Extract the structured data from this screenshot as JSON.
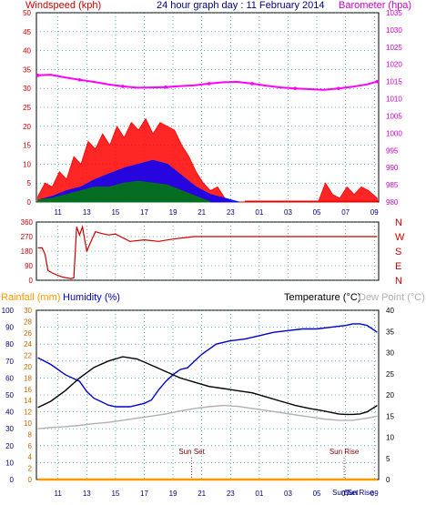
{
  "colors": {
    "windspeed": "#ff0000",
    "gust_area": "#ff0000",
    "avg_area": "#0000ff",
    "low_area": "#008000",
    "barometer": "#ff00ff",
    "direction": "#cc0000",
    "rainfall": "#ff9900",
    "humidity": "#0000cc",
    "temperature": "#000000",
    "dewpoint": "#b0b0b0",
    "grid": "#008080",
    "axis_left_wind": "#cc0000",
    "axis_right_baro": "#cc00cc",
    "axis_time": "#000080",
    "axis_hum": "#000080",
    "axis_rain": "#cc6600",
    "axis_temp": "#000000",
    "compass": "#cc0000"
  },
  "chart_data": [
    {
      "type": "line",
      "title": "24 hour graph day : 11 February 2014",
      "ylabel": "Windspeed (kph)",
      "y2label": "Barometer (hpa)",
      "ylim": [
        0,
        50
      ],
      "yticks": [
        "0",
        "5",
        "10",
        "15",
        "20",
        "25",
        "30",
        "35",
        "40",
        "45",
        "50"
      ],
      "y2lim": [
        980,
        1035
      ],
      "y2ticks": [
        "980",
        "985",
        "990",
        "995",
        "1000",
        "1005",
        "1010",
        "1015",
        "1020",
        "1025",
        "1030",
        "1035"
      ],
      "xlim": [
        9.5,
        33.3
      ],
      "xticks": [
        "11",
        "13",
        "15",
        "17",
        "19",
        "21",
        "23",
        "01",
        "03",
        "05",
        "07",
        "09"
      ],
      "grid": true,
      "series": [
        {
          "name": "Barometer",
          "axis": "right",
          "x": [
            9.6,
            10.5,
            11.5,
            12.5,
            13.5,
            14.5,
            15.5,
            16.5,
            17.5,
            18.5,
            19.5,
            20.5,
            21.5,
            22.5,
            23.5,
            24.5,
            25.5,
            26.5,
            27.5,
            28.5,
            29.5,
            30.5,
            31.5,
            32.5,
            33.2
          ],
          "values": [
            1016.8,
            1017.0,
            1016.2,
            1015.5,
            1014.9,
            1014.2,
            1013.6,
            1013.2,
            1013.3,
            1013.4,
            1013.7,
            1013.9,
            1014.4,
            1014.8,
            1014.9,
            1014.4,
            1013.8,
            1013.3,
            1013.0,
            1012.8,
            1012.6,
            1013.0,
            1013.5,
            1014.2,
            1015.0
          ]
        },
        {
          "name": "Gust",
          "type": "area",
          "x": [
            9.6,
            10.1,
            10.6,
            11.1,
            11.6,
            12.1,
            12.6,
            13.1,
            13.6,
            14.1,
            14.6,
            15.1,
            15.6,
            16.1,
            16.6,
            17.1,
            17.6,
            18.1,
            18.6,
            19.1,
            19.6,
            20.1,
            20.6,
            21.1,
            21.6,
            22.1,
            22.6,
            23.1,
            23.6,
            24.1,
            25.1,
            26.1,
            27.1,
            28.1,
            28.6,
            29.1,
            29.6,
            30.1,
            30.6,
            31.1,
            31.6,
            32.1,
            32.6,
            33.2
          ],
          "values": [
            1.5,
            5,
            4,
            8,
            6,
            12,
            10,
            16,
            14,
            18,
            15,
            20,
            17,
            21,
            19,
            22,
            18,
            21,
            20,
            19,
            15,
            12,
            8,
            5,
            3,
            4,
            1,
            0,
            0,
            0,
            0,
            0,
            0,
            0,
            0,
            0,
            5,
            2,
            1,
            4,
            2,
            4,
            3,
            1
          ]
        },
        {
          "name": "Average",
          "type": "area",
          "x": [
            9.6,
            10.6,
            11.6,
            12.6,
            13.6,
            14.6,
            15.6,
            16.6,
            17.6,
            18.6,
            19.6,
            20.6,
            21.6,
            22.6,
            23.6
          ],
          "values": [
            0.5,
            1.5,
            3,
            4,
            6,
            7.5,
            9,
            10,
            11,
            10,
            7,
            4,
            2,
            1,
            0
          ]
        },
        {
          "name": "Low",
          "type": "area",
          "x": [
            9.6,
            10.6,
            11.6,
            12.6,
            13.6,
            14.6,
            15.6,
            16.6,
            17.6,
            18.6,
            19.6,
            20.6,
            21.6
          ],
          "values": [
            0.5,
            1,
            2,
            3,
            4,
            4,
            5,
            5.5,
            5,
            4.5,
            3,
            1.5,
            0
          ]
        }
      ]
    },
    {
      "type": "line",
      "ylabel": "Wind direction",
      "ylim": [
        0,
        360
      ],
      "yticks": [
        "0",
        "90",
        "180",
        "270",
        "360"
      ],
      "compass_labels": [
        "N",
        "W",
        "S",
        "E",
        "N"
      ],
      "xlim": [
        9.5,
        33.3
      ],
      "grid": true,
      "series": [
        {
          "name": "Direction",
          "x": [
            9.6,
            9.9,
            10.1,
            10.3,
            10.6,
            11.0,
            11.3,
            11.6,
            11.9,
            12.1,
            12.3,
            12.5,
            12.7,
            13.0,
            13.3,
            13.6,
            14.0,
            14.5,
            15.0,
            16.0,
            17.0,
            18.0,
            19.0,
            20.0,
            20.5,
            21.0,
            22.0,
            23.0,
            25.0,
            27.0,
            29.0,
            31.0,
            33.2
          ],
          "values": [
            200,
            200,
            160,
            60,
            45,
            30,
            20,
            15,
            10,
            15,
            330,
            280,
            330,
            180,
            240,
            300,
            290,
            280,
            285,
            240,
            250,
            240,
            255,
            265,
            270,
            270,
            270,
            270,
            270,
            270,
            270,
            270,
            270
          ]
        }
      ]
    },
    {
      "type": "line",
      "ylabel": "Rainfall (mm)",
      "y2label": "Humidity (%)",
      "y3label": "Temperature (°C)",
      "y4label": "Dew Point (°C)",
      "humidity_lim": [
        0,
        100
      ],
      "humidity_ticks": [
        "0",
        "10",
        "20",
        "30",
        "40",
        "50",
        "60",
        "70",
        "80",
        "90",
        "100"
      ],
      "rain_lim": [
        0,
        30
      ],
      "rain_ticks": [
        "0",
        "2",
        "4",
        "6",
        "8",
        "10",
        "12",
        "14",
        "16",
        "18",
        "20",
        "22",
        "24",
        "26",
        "28",
        "30"
      ],
      "temp_lim": [
        0,
        40
      ],
      "temp_ticks": [
        "0",
        "5",
        "10",
        "15",
        "20",
        "25",
        "30",
        "35",
        "40"
      ],
      "xlim": [
        9.5,
        33.3
      ],
      "xticks": [
        "11",
        "13",
        "15",
        "17",
        "19",
        "21",
        "23",
        "01",
        "03",
        "05",
        "07",
        "09"
      ],
      "markers": [
        {
          "label": "Sun Set",
          "x": 20.3
        },
        {
          "label": "Sun Rise",
          "x": 30.9
        }
      ],
      "bottom_labels": [
        "Sun Set",
        "Sun Rise"
      ],
      "series": [
        {
          "name": "Humidity",
          "axis": "humidity",
          "x": [
            9.6,
            10.5,
            11.5,
            12.5,
            13.0,
            13.5,
            14.0,
            14.5,
            15.0,
            15.5,
            16.0,
            16.5,
            17.0,
            17.5,
            18.0,
            18.5,
            19.0,
            19.5,
            20.0,
            20.5,
            21.0,
            22.0,
            23.0,
            24.0,
            25.0,
            26.0,
            27.0,
            28.0,
            29.0,
            30.0,
            31.0,
            31.5,
            32.0,
            32.5,
            33.2
          ],
          "values": [
            72,
            68,
            62,
            58,
            52,
            48,
            46,
            44,
            43,
            43,
            43,
            44,
            45,
            47,
            53,
            58,
            62,
            65,
            66,
            70,
            74,
            80,
            82,
            83,
            85,
            87,
            88,
            89,
            89,
            90,
            91,
            92,
            92,
            91,
            87
          ]
        },
        {
          "name": "Temperature",
          "axis": "temp",
          "x": [
            9.6,
            10.5,
            11.5,
            12.5,
            13.5,
            14.5,
            15.5,
            16.5,
            17.5,
            18.5,
            19.5,
            20.5,
            21.5,
            22.5,
            23.5,
            24.5,
            25.5,
            26.5,
            27.5,
            28.5,
            29.5,
            30.5,
            31.0,
            31.5,
            32.0,
            32.5,
            33.2
          ],
          "values": [
            17,
            18.5,
            21,
            24,
            26.5,
            28,
            29,
            28.5,
            27,
            25.5,
            24,
            23,
            22,
            21.5,
            21,
            20.5,
            19.5,
            18.5,
            17.5,
            16.8,
            16.2,
            15.5,
            15.4,
            15.4,
            15.5,
            16,
            17.5
          ]
        },
        {
          "name": "Dew Point",
          "axis": "temp",
          "x": [
            9.6,
            10.5,
            11.5,
            12.5,
            13.5,
            14.5,
            15.5,
            16.5,
            17.5,
            18.5,
            19.5,
            20.5,
            21.5,
            22.5,
            23.5,
            24.5,
            25.5,
            26.5,
            27.5,
            28.5,
            29.5,
            30.5,
            31.5,
            32.5,
            33.2
          ],
          "values": [
            12,
            12.3,
            12.5,
            12.8,
            13.2,
            13.5,
            14,
            14.5,
            15,
            15.5,
            16.2,
            16.8,
            17.2,
            17.5,
            17.3,
            16.8,
            16.3,
            15.8,
            15.3,
            14.8,
            14.3,
            14,
            14,
            14.5,
            15
          ]
        },
        {
          "name": "Rainfall",
          "axis": "rain",
          "x": [
            9.6,
            33.2
          ],
          "values": [
            0,
            0
          ]
        }
      ]
    }
  ]
}
